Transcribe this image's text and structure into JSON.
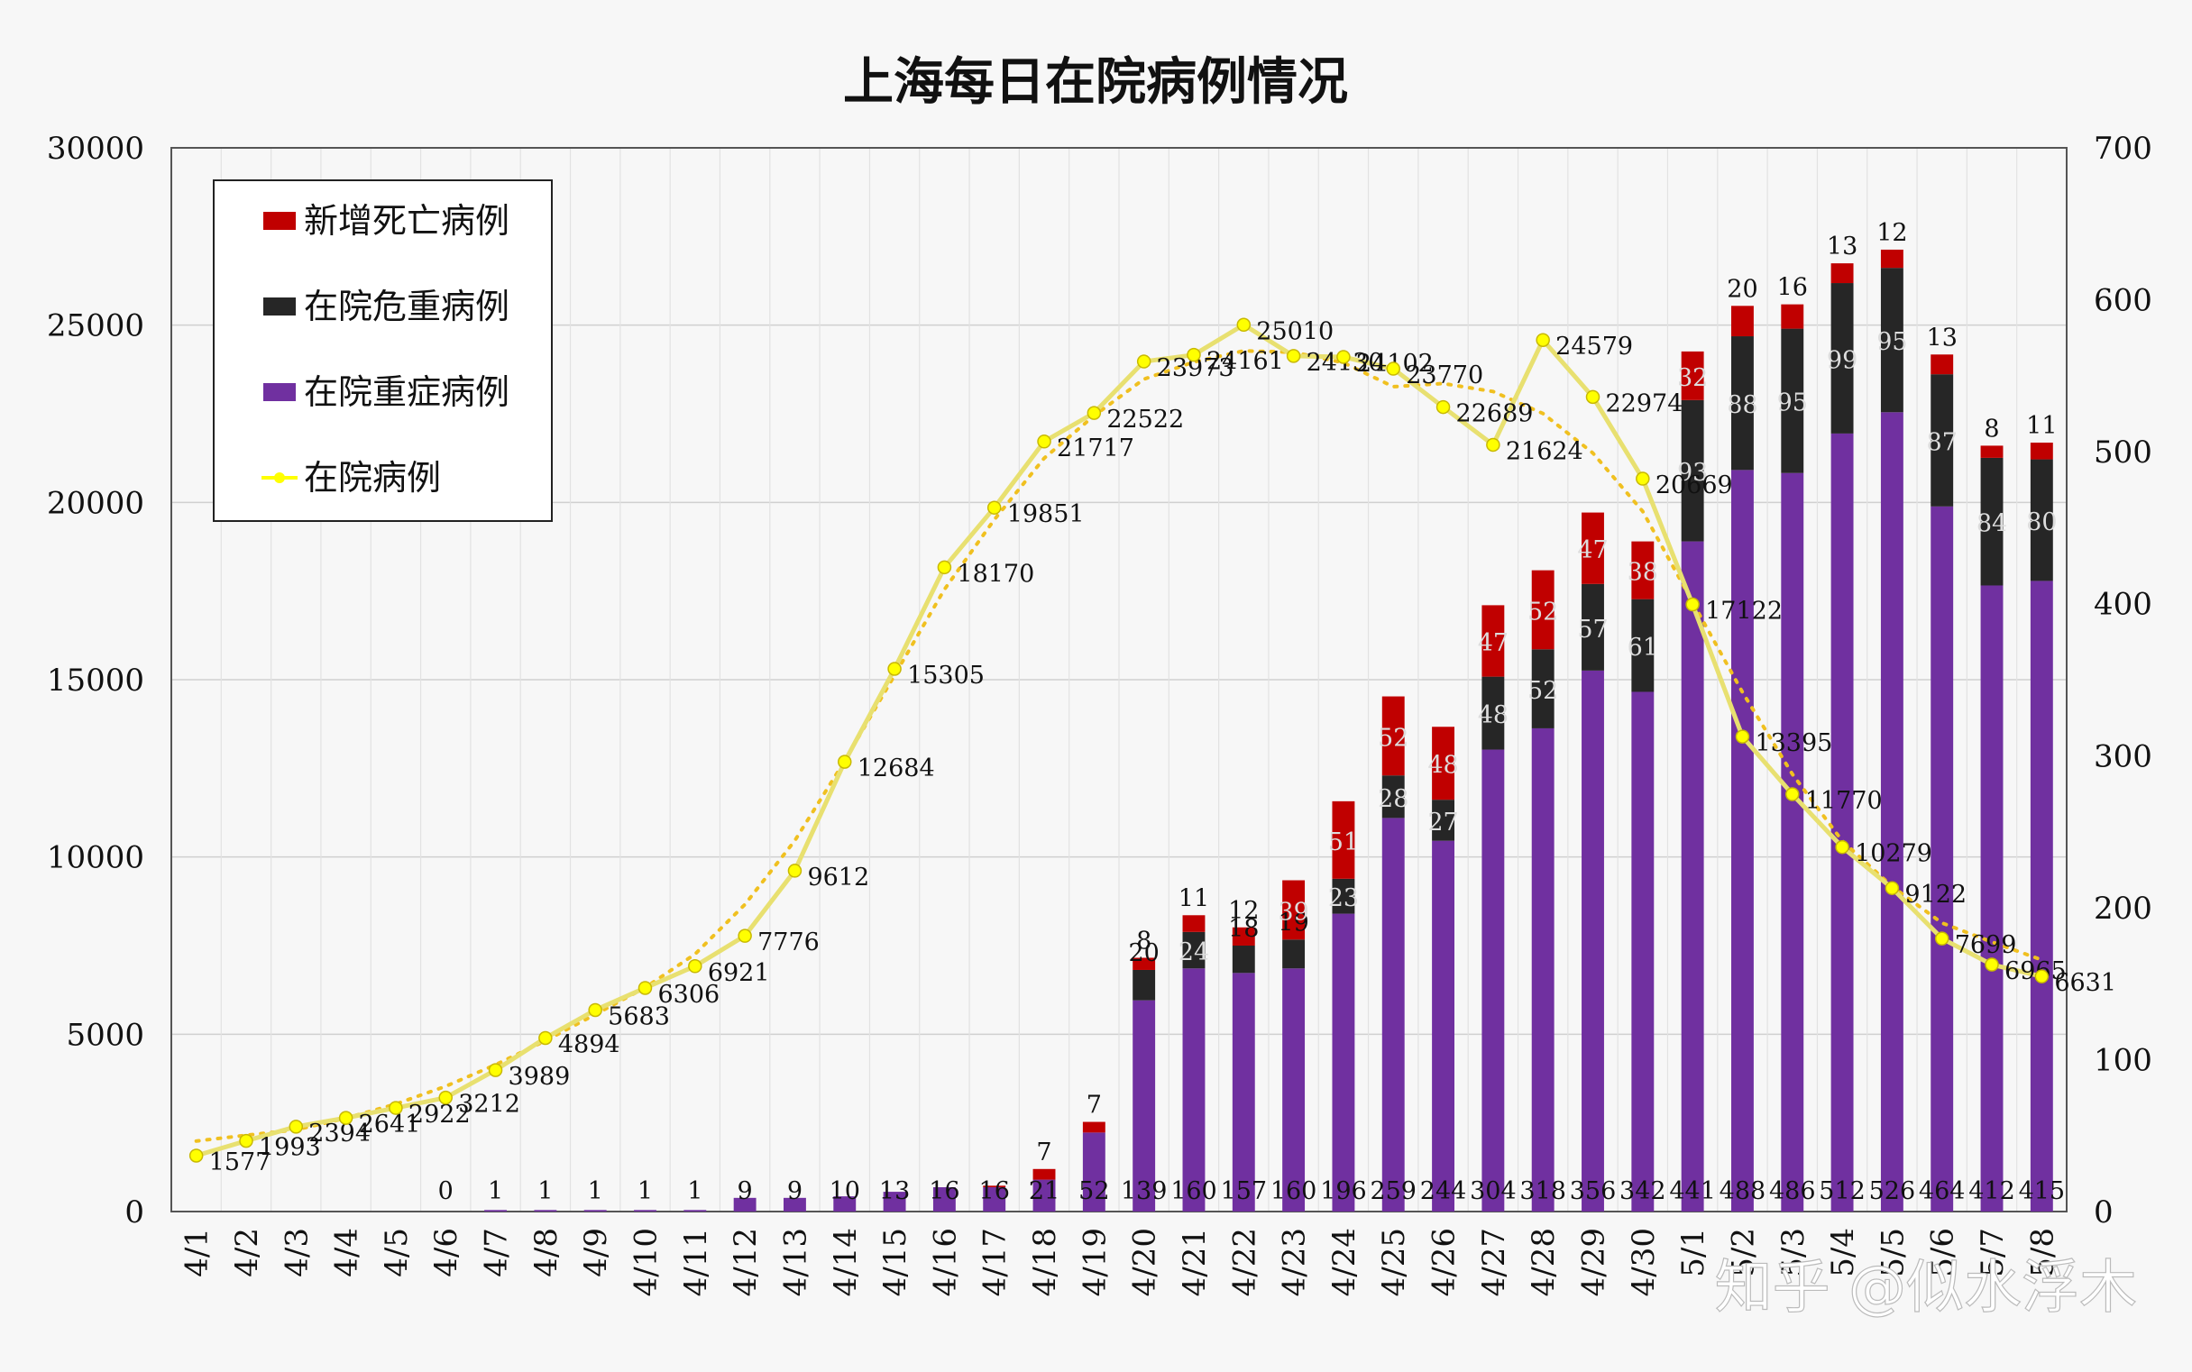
{
  "title": "上海每日在院病例情况",
  "watermark": "知乎 @似水浮木",
  "colors": {
    "severe": "#7030a0",
    "critical": "#262626",
    "death": "#c00000",
    "hospitalized": "#ffff00",
    "trend": "#f0c020",
    "background": "#f7f7f7"
  },
  "chart_data": {
    "type": "bar",
    "stacked": true,
    "title": "上海每日在院病例情况",
    "categories": [
      "4/1",
      "4/2",
      "4/3",
      "4/4",
      "4/5",
      "4/6",
      "4/7",
      "4/8",
      "4/9",
      "4/10",
      "4/11",
      "4/12",
      "4/13",
      "4/14",
      "4/15",
      "4/16",
      "4/17",
      "4/18",
      "4/19",
      "4/20",
      "4/21",
      "4/22",
      "4/23",
      "4/24",
      "4/25",
      "4/26",
      "4/27",
      "4/28",
      "4/29",
      "4/30",
      "5/1",
      "5/2",
      "5/3",
      "5/4",
      "5/5",
      "5/6",
      "5/7",
      "5/8"
    ],
    "left_axis": {
      "min": 0,
      "max": 30000,
      "ticks": [
        "0",
        "5000",
        "10000",
        "15000",
        "20000",
        "25000",
        "30000"
      ]
    },
    "right_axis": {
      "min": 0,
      "max": 700,
      "ticks": [
        "0",
        "100",
        "200",
        "300",
        "400",
        "500",
        "600",
        "700"
      ]
    },
    "grid": true,
    "legend_position": "top-left",
    "legend": [
      "新增死亡病例",
      "在院危重病例",
      "在院重症病例",
      "在院病例"
    ],
    "series": [
      {
        "name": "在院重症病例",
        "axis": "right",
        "type": "bar",
        "values": [
          null,
          null,
          null,
          null,
          null,
          0,
          1,
          1,
          1,
          1,
          1,
          9,
          9,
          10,
          13,
          16,
          16,
          21,
          52,
          139,
          160,
          157,
          160,
          196,
          259,
          244,
          304,
          318,
          356,
          342,
          441,
          488,
          486,
          512,
          526,
          464,
          412,
          415
        ],
        "labels": [
          "",
          "",
          "",
          "",
          "",
          "0",
          "1",
          "1",
          "1",
          "1",
          "1",
          "9",
          "9",
          "10",
          "13",
          "16",
          "16",
          "21",
          "52",
          "139",
          "160",
          "157",
          "160",
          "196",
          "259",
          "244",
          "304",
          "318",
          "356",
          "342",
          "441",
          "488",
          "486",
          "512",
          "526",
          "464",
          "412",
          "415"
        ]
      },
      {
        "name": "在院危重病例",
        "axis": "right",
        "type": "bar",
        "values": [
          null,
          null,
          null,
          null,
          null,
          null,
          null,
          null,
          null,
          null,
          null,
          null,
          null,
          null,
          null,
          null,
          null,
          null,
          null,
          20,
          24,
          18,
          19,
          23,
          28,
          27,
          48,
          52,
          57,
          61,
          93,
          88,
          95,
          99,
          95,
          87,
          84,
          80
        ],
        "labels": [
          "",
          "",
          "",
          "",
          "",
          "",
          "",
          "",
          "",
          "",
          "",
          "",
          "",
          "",
          "",
          "",
          "",
          "",
          "",
          "20",
          "24",
          "18",
          "19",
          "23",
          "28",
          "27",
          "48",
          "52",
          "57",
          "61",
          "93",
          "88",
          "95",
          "99",
          "95",
          "87",
          "84",
          "80"
        ]
      },
      {
        "name": "新增死亡病例",
        "axis": "right",
        "type": "bar",
        "values": [
          null,
          null,
          null,
          null,
          null,
          null,
          null,
          null,
          null,
          null,
          null,
          null,
          null,
          null,
          null,
          null,
          1,
          7,
          7,
          8,
          11,
          12,
          39,
          51,
          52,
          48,
          47,
          52,
          47,
          38,
          32,
          20,
          16,
          13,
          12,
          13,
          8,
          11
        ],
        "labels": [
          "",
          "",
          "",
          "",
          "",
          "",
          "",
          "",
          "",
          "",
          "",
          "",
          "",
          "",
          "",
          "",
          "",
          "7",
          "7",
          "8",
          "11",
          "12",
          "39",
          "51",
          "52",
          "48",
          "47",
          "52",
          "47",
          "38",
          "32",
          "20",
          "16",
          "13",
          "12",
          "13",
          "8",
          "11"
        ]
      },
      {
        "name": "在院病例",
        "axis": "left",
        "type": "line",
        "values": [
          1577,
          1993,
          2394,
          2641,
          2922,
          3212,
          3989,
          4894,
          5683,
          6306,
          6921,
          7776,
          9612,
          12684,
          15305,
          18170,
          19851,
          21717,
          22522,
          23973,
          24161,
          25010,
          24130,
          24102,
          23770,
          22689,
          21624,
          24579,
          22974,
          20669,
          17122,
          13395,
          11770,
          10279,
          9122,
          7699,
          6965,
          6631
        ],
        "labels": [
          "1577",
          "1993",
          "2394",
          "2641",
          "2922",
          "3212",
          "3989",
          "4894",
          "5683",
          "6306",
          "6921",
          "7776",
          "9612",
          "12684",
          "15305",
          "18170",
          "19851",
          "21717",
          "22522",
          "23973",
          "24161",
          "25010",
          "24130",
          "24102",
          "23770",
          "22689",
          "21624",
          "24579",
          "22974",
          "20669",
          "17122",
          "13395",
          "11770",
          "10279",
          "9122",
          "7699",
          "6965",
          "6631"
        ]
      }
    ],
    "trendline": {
      "of": "在院病例",
      "type": "polynomial",
      "style": "dotted"
    }
  }
}
